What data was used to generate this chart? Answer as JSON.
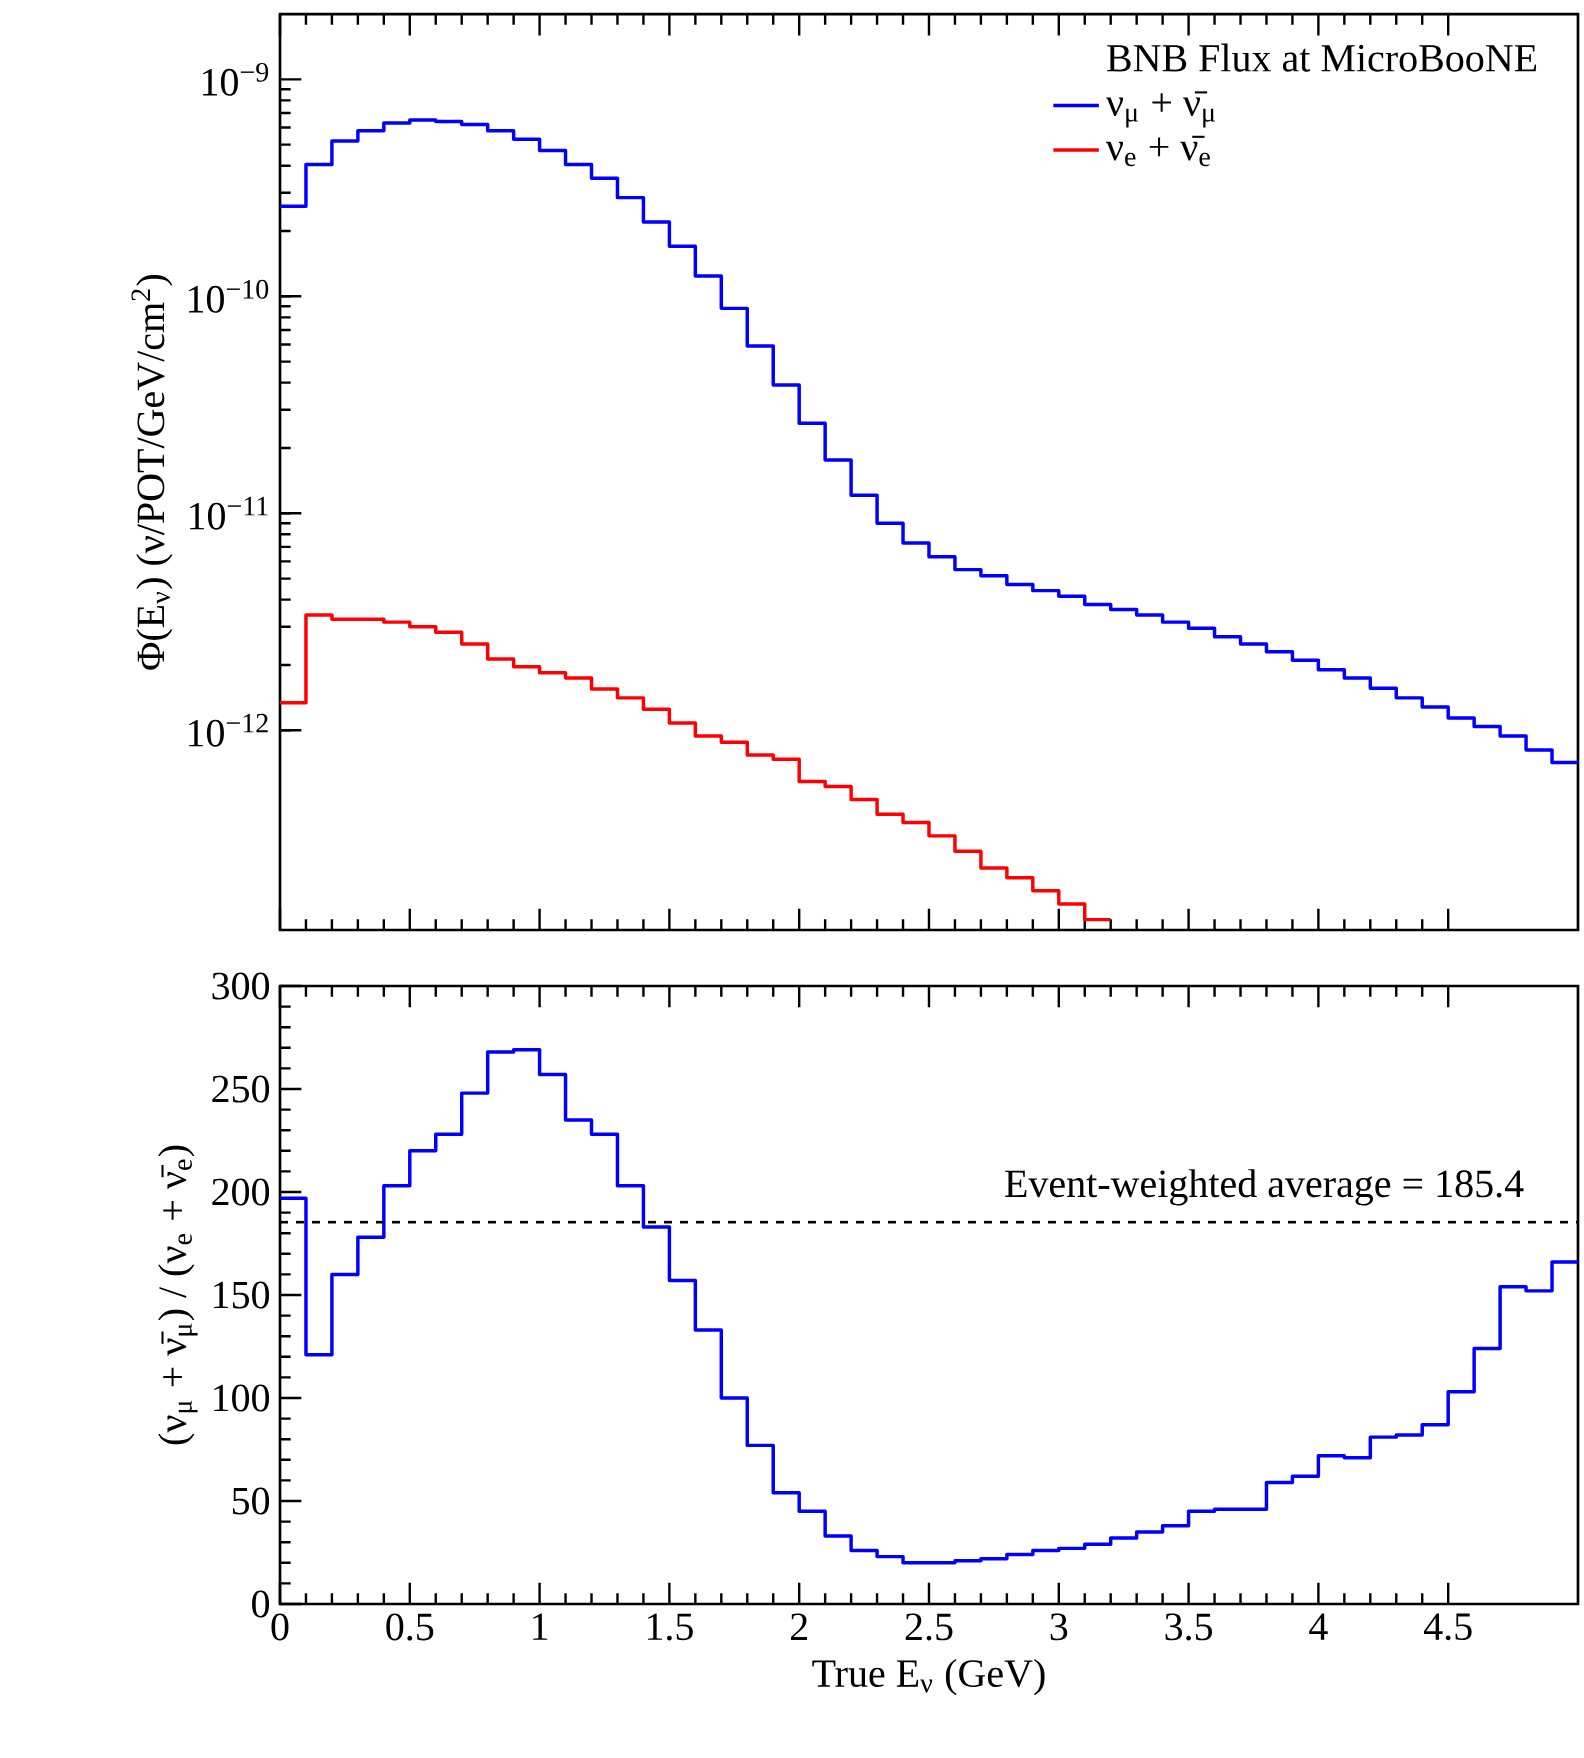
{
  "chart_data": [
    {
      "type": "histogram",
      "legend_title": "BNB Flux at MicroBooNE",
      "ylabel": "Φ(E$_{ν}$) (ν/POT/GeV/cm$^{2}$)",
      "log": "y",
      "legend": "top right",
      "tick_labels": "y",
      "bins": [
        0,
        0.1,
        0.2,
        0.3,
        0.4,
        0.5,
        0.6,
        0.7,
        0.8,
        0.9,
        1.0,
        1.1,
        1.2,
        1.3,
        1.4,
        1.5,
        1.6,
        1.7,
        1.8,
        1.9,
        2.0,
        2.1,
        2.2,
        2.3,
        2.4,
        2.5,
        2.6,
        2.7,
        2.8,
        2.9,
        3.0,
        3.1,
        3.2,
        3.3,
        3.4,
        3.5,
        3.6,
        3.7,
        3.8,
        3.9,
        4.0,
        4.1,
        4.2,
        4.3,
        4.4,
        4.5,
        4.6,
        4.7,
        4.8,
        4.9,
        5.0
      ],
      "xlim": [
        0,
        5
      ],
      "xticks": [
        {
          "value": 0,
          "label": null
        },
        {
          "value": 0.5,
          "label": null
        },
        {
          "value": 1,
          "label": null
        },
        {
          "value": 1.5,
          "label": null
        },
        {
          "value": 2,
          "label": null
        },
        {
          "value": 2.5,
          "label": null
        },
        {
          "value": 3,
          "label": null
        },
        {
          "value": 3.5,
          "label": null
        },
        {
          "value": 4,
          "label": null
        },
        {
          "value": 4.5,
          "label": null
        }
      ],
      "ylim": [
        1.2e-13,
        2e-09
      ],
      "yticks": [
        {
          "value": 1e-12,
          "label": "10$^{−12}$"
        },
        {
          "value": 1e-11,
          "label": "10$^{−11}$"
        },
        {
          "value": 1e-10,
          "label": "10$^{−10}$"
        },
        {
          "value": 1e-09,
          "label": "10$^{−9}$"
        }
      ],
      "series": [
        {
          "name": "ν$_{μ}$ + ν̄$_{μ}$",
          "color": "#0000ff",
          "values": [
            2.6e-10,
            4.05e-10,
            5.2e-10,
            5.8e-10,
            6.3e-10,
            6.5e-10,
            6.4e-10,
            6.2e-10,
            5.8e-10,
            5.3e-10,
            4.7e-10,
            4.05e-10,
            3.5e-10,
            2.85e-10,
            2.2e-10,
            1.7e-10,
            1.24e-10,
            8.8e-11,
            5.9e-11,
            3.9e-11,
            2.6e-11,
            1.76e-11,
            1.21e-11,
            9e-12,
            7.3e-12,
            6.3e-12,
            5.5e-12,
            5.15e-12,
            4.7e-12,
            4.4e-12,
            4.15e-12,
            3.8e-12,
            3.6e-12,
            3.4e-12,
            3.15e-12,
            2.95e-12,
            2.7e-12,
            2.5e-12,
            2.3e-12,
            2.1e-12,
            1.9e-12,
            1.74e-12,
            1.56e-12,
            1.41e-12,
            1.28e-12,
            1.14e-12,
            1.04e-12,
            9.4e-13,
            8.1e-13,
            7.1e-13
          ]
        },
        {
          "name": "ν$_{e}$ + ν̄$_{e}$",
          "color": "#ff0000",
          "bins": [
            0,
            0.1,
            0.2,
            0.3,
            0.4,
            0.5,
            0.6,
            0.7,
            0.8,
            0.9,
            1.0,
            1.1,
            1.2,
            1.3,
            1.4,
            1.5,
            1.6,
            1.7,
            1.8,
            1.9,
            2.0,
            2.1,
            2.2,
            2.3,
            2.4,
            2.5,
            2.6,
            2.7,
            2.8,
            2.9,
            3.0,
            3.1,
            3.2
          ],
          "values": [
            1.34e-12,
            3.4e-12,
            3.25e-12,
            3.25e-12,
            3.15e-12,
            3e-12,
            2.83e-12,
            2.5e-12,
            2.13e-12,
            1.96e-12,
            1.84e-12,
            1.74e-12,
            1.55e-12,
            1.41e-12,
            1.25e-12,
            1.08e-12,
            9.4e-13,
            8.8e-13,
            7.7e-13,
            7.35e-13,
            5.8e-13,
            5.5e-13,
            4.8e-13,
            4.1e-13,
            3.76e-13,
            3.26e-13,
            2.77e-13,
            2.32e-13,
            2.09e-13,
            1.82e-13,
            1.58e-13,
            1.34e-13
          ]
        }
      ]
    },
    {
      "type": "histogram",
      "xlabel": "True E$_{ν}$ (GeV)",
      "ylabel": "(ν$_{μ}$ + ν̄$_{μ}$) / (ν$_{e}$ + ν̄$_{e}$)",
      "bins": [
        0,
        0.1,
        0.2,
        0.3,
        0.4,
        0.5,
        0.6,
        0.7,
        0.8,
        0.9,
        1.0,
        1.1,
        1.2,
        1.3,
        1.4,
        1.5,
        1.6,
        1.7,
        1.8,
        1.9,
        2.0,
        2.1,
        2.2,
        2.3,
        2.4,
        2.5,
        2.6,
        2.7,
        2.8,
        2.9,
        3.0,
        3.1,
        3.2,
        3.3,
        3.4,
        3.5,
        3.6,
        3.7,
        3.8,
        3.9,
        4.0,
        4.1,
        4.2,
        4.3,
        4.4,
        4.5,
        4.6,
        4.7,
        4.8,
        4.9,
        5.0
      ],
      "xlim": [
        0,
        5
      ],
      "xticks": [
        0,
        0.5,
        1,
        1.5,
        2,
        2.5,
        3,
        3.5,
        4,
        4.5
      ],
      "ylim": [
        0,
        300
      ],
      "yticks": [
        0,
        50,
        100,
        150,
        200,
        250,
        300
      ],
      "ref_lines": [
        {
          "axis": "y",
          "value": 185.4,
          "label": "Event-weighted average = 185.4",
          "color": "#000000",
          "line_style": "dashed"
        }
      ],
      "series": [
        {
          "color": "#0000ff",
          "values": [
            197,
            121,
            160,
            178,
            203,
            220,
            228,
            248,
            268,
            269,
            257,
            235,
            228,
            203,
            183,
            157,
            133,
            100,
            77,
            54,
            45,
            33,
            26,
            23,
            20,
            20,
            21,
            22,
            24,
            26,
            27,
            29,
            32,
            35,
            38,
            45,
            46,
            46,
            59,
            62,
            72,
            71,
            81,
            82,
            87,
            103,
            124,
            154,
            152,
            166
          ]
        }
      ]
    }
  ]
}
